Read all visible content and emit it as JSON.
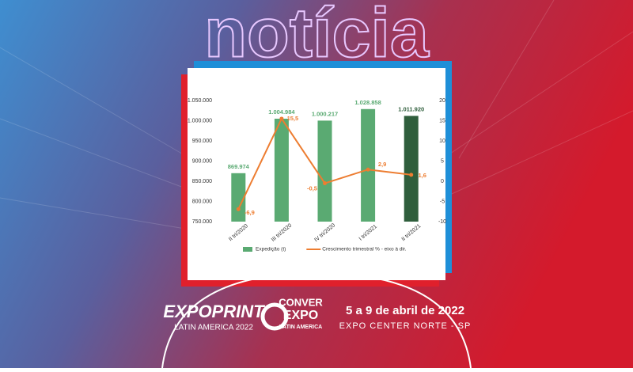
{
  "banner": {
    "heading": "notícia"
  },
  "footer": {
    "expoprint": "EXPOPRINT",
    "expoprint_sub": "LATIN AMERICA 2022",
    "conver_1": "CONVER",
    "conver_2": "EXPO",
    "conver_3": "LATIN AMERICA",
    "dates": "5 a 9 de abril de 2022",
    "venue": "EXPO CENTER NORTE - SP"
  },
  "chart_data": {
    "type": "bar-line",
    "categories": [
      "II tri/2020",
      "III tri/2020",
      "IV tri/2020",
      "I tri/2021",
      "II tri/2021"
    ],
    "series": [
      {
        "name": "Expedição (t)",
        "type": "bar",
        "color": "#5aaa72",
        "colors": [
          "#5aaa72",
          "#5aaa72",
          "#5aaa72",
          "#5aaa72",
          "#2f5e3c"
        ],
        "values": [
          869974,
          1004984,
          1000217,
          1028858,
          1011920
        ],
        "value_labels": [
          "869.974",
          "1.004.984",
          "1.000.217",
          "1.028.858",
          "1.011.920"
        ]
      },
      {
        "name": "Crescimento trimestral % - eixo à dir.",
        "type": "line",
        "axis": "y2",
        "color": "#ed7d31",
        "values": [
          -6.9,
          15.5,
          -0.5,
          2.9,
          1.6
        ],
        "value_labels": [
          "-6,9",
          "15,5",
          "-0,5",
          "2,9",
          "1,6"
        ]
      }
    ],
    "ylim": [
      750000,
      1050000
    ],
    "yticks": [
      {
        "value": 750000,
        "label": "750.000"
      },
      {
        "value": 800000,
        "label": "800.000"
      },
      {
        "value": 850000,
        "label": "850.000"
      },
      {
        "value": 900000,
        "label": "900.000"
      },
      {
        "value": 950000,
        "label": "950.000"
      },
      {
        "value": 1000000,
        "label": "1.000.000"
      },
      {
        "value": 1050000,
        "label": "1.050.000"
      }
    ],
    "y2lim": [
      -10,
      20
    ],
    "y2ticks": [
      -10,
      -5,
      0,
      5,
      10,
      15,
      20
    ]
  }
}
